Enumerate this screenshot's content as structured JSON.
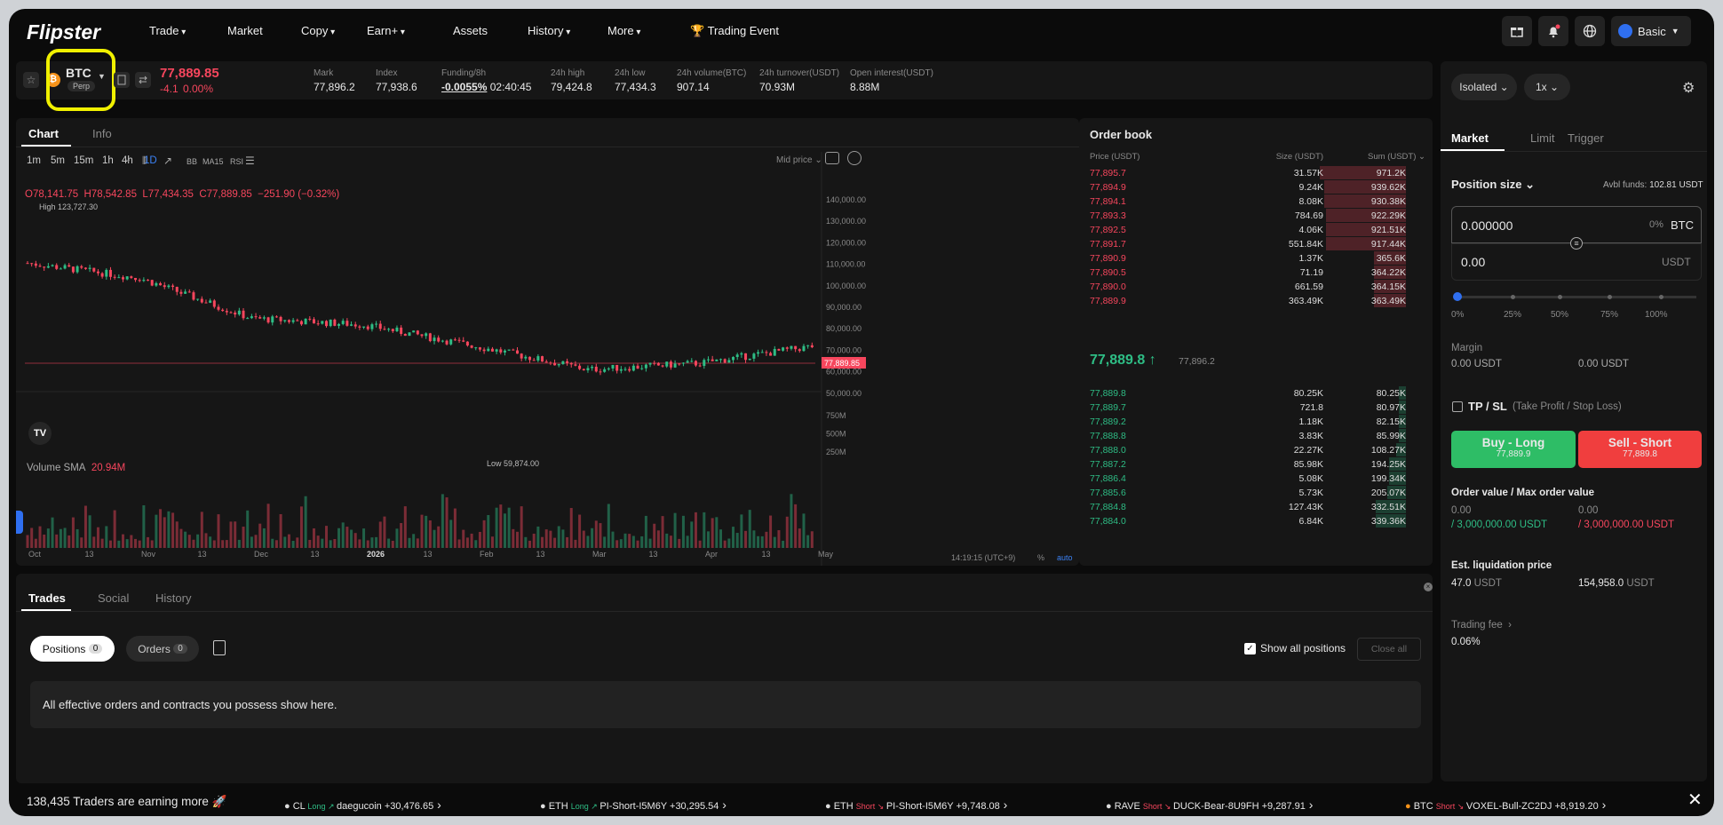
{
  "nav": {
    "logo": "Flipster",
    "items": [
      "Trade",
      "Market",
      "Copy",
      "Earn+",
      "Assets",
      "History",
      "More",
      "Trading Event"
    ],
    "dropdowns": [
      true,
      false,
      true,
      true,
      false,
      true,
      true,
      false
    ],
    "account": "Basic"
  },
  "symbol": {
    "name": "BTC",
    "type": "Perp",
    "price": "77,889.85",
    "change": "-4.1",
    "change_pct": "0.00%",
    "stats": [
      {
        "label": "Mark",
        "value": "77,896.2"
      },
      {
        "label": "Index",
        "value": "77,938.6"
      },
      {
        "label": "Funding/8h",
        "value": "-0.0055%",
        "extra": "02:40:45"
      },
      {
        "label": "24h high",
        "value": "79,424.8"
      },
      {
        "label": "24h low",
        "value": "77,434.3"
      },
      {
        "label": "24h volume(BTC)",
        "value": "907.14"
      },
      {
        "label": "24h turnover(USDT)",
        "value": "70.93M"
      },
      {
        "label": "Open interest(USDT)",
        "value": "8.88M"
      }
    ]
  },
  "chart": {
    "tabs": [
      "Chart",
      "Info"
    ],
    "intervals": [
      "1m",
      "5m",
      "15m",
      "1h",
      "4h",
      "1D"
    ],
    "active_interval": "1D",
    "tools": [
      "BB",
      "MA15",
      "RSI"
    ],
    "price_mode": "Mid price",
    "ohlc": {
      "o": "O78,141.75",
      "h": "H78,542.85",
      "l": "L77,434.35",
      "c": "C77,889.85",
      "chg": "−251.90 (−0.32%)"
    },
    "high_label": "High 123,727.30",
    "low_label": "Low 59,874.00",
    "last_price_tag": "77,889.85",
    "y_ticks": [
      "140,000.00",
      "130,000.00",
      "120,000.00",
      "110,000.00",
      "100,000.00",
      "90,000.00",
      "80,000.00",
      "70,000.00",
      "60,000.00",
      "50,000.00"
    ],
    "vol_ticks": [
      "750M",
      "500M",
      "250M"
    ],
    "volume_label": "Volume SMA",
    "volume_value": "20.94M",
    "x_ticks": [
      "Oct",
      "13",
      "Nov",
      "13",
      "Dec",
      "13",
      "2026",
      "13",
      "Feb",
      "13",
      "Mar",
      "13",
      "Apr",
      "13",
      "May"
    ],
    "time": "14:19:15 (UTC+9)",
    "pct": "%",
    "auto": "auto"
  },
  "chart_data": {
    "type": "line",
    "title": "",
    "xlabel": "",
    "ylabel": "",
    "ylim": [
      50000,
      140000
    ],
    "x": [
      "Oct",
      "Nov",
      "Dec",
      "2026",
      "Feb",
      "Mar",
      "Apr",
      "May"
    ],
    "series": [
      {
        "values": [
          117000,
          110000,
          91000,
          88000,
          78000,
          67000,
          70000,
          77900
        ]
      }
    ]
  },
  "orderbook": {
    "title": "Order book",
    "headers": [
      "Price (USDT)",
      "Size (USDT)",
      "Sum (USDT)"
    ],
    "asks": [
      [
        "77,895.7",
        "31.57K",
        "971.2K",
        0.46
      ],
      [
        "77,894.9",
        "9.24K",
        "939.62K",
        0.44
      ],
      [
        "77,894.1",
        "8.08K",
        "930.38K",
        0.44
      ],
      [
        "77,893.3",
        "784.69",
        "922.29K",
        0.43
      ],
      [
        "77,892.5",
        "4.06K",
        "921.51K",
        0.43
      ],
      [
        "77,891.7",
        "551.84K",
        "917.44K",
        0.43
      ],
      [
        "77,890.9",
        "1.37K",
        "365.6K",
        0.17
      ],
      [
        "77,890.5",
        "71.19",
        "364.22K",
        0.17
      ],
      [
        "77,890.0",
        "661.59",
        "364.15K",
        0.17
      ],
      [
        "77,889.9",
        "363.49K",
        "363.49K",
        0.17
      ]
    ],
    "mid": "77,889.8",
    "mid_mark": "77,896.2",
    "bids": [
      [
        "77,889.8",
        "80.25K",
        "80.25K",
        0.04
      ],
      [
        "77,889.7",
        "721.8",
        "80.97K",
        0.04
      ],
      [
        "77,889.2",
        "1.18K",
        "82.15K",
        0.04
      ],
      [
        "77,888.8",
        "3.83K",
        "85.99K",
        0.04
      ],
      [
        "77,888.0",
        "22.27K",
        "108.27K",
        0.05
      ],
      [
        "77,887.2",
        "85.98K",
        "194.25K",
        0.09
      ],
      [
        "77,886.4",
        "5.08K",
        "199.34K",
        0.09
      ],
      [
        "77,885.6",
        "5.73K",
        "205.07K",
        0.1
      ],
      [
        "77,884.8",
        "127.43K",
        "332.51K",
        0.16
      ],
      [
        "77,884.0",
        "6.84K",
        "339.36K",
        0.16
      ]
    ]
  },
  "bottom": {
    "tabs": [
      "Trades",
      "Social",
      "History"
    ],
    "positions": "Positions",
    "positions_count": "0",
    "orders": "Orders",
    "orders_count": "0",
    "show_all": "Show all positions",
    "close_all": "Close all",
    "empty": "All effective orders and contracts you possess show here."
  },
  "order_panel": {
    "margin_mode": "Isolated",
    "leverage": "1x",
    "tabs": [
      "Market",
      "Limit",
      "Trigger"
    ],
    "position_size": "Position size",
    "avbl_label": "Avbl funds:",
    "avbl_value": "102.81 USDT",
    "btc_value": "0.000000",
    "btc_pct": "0%",
    "btc_unit": "BTC",
    "usdt_value": "0.00",
    "usdt_unit": "USDT",
    "slider": [
      "0%",
      "25%",
      "50%",
      "75%",
      "100%"
    ],
    "margin_label": "Margin",
    "margin_long": "0.00 USDT",
    "margin_short": "0.00 USDT",
    "tpsl": "TP / SL",
    "tpsl_hint": "(Take Profit / Stop Loss)",
    "buy": "Buy - Long",
    "buy_price": "77,889.9",
    "sell": "Sell - Short",
    "sell_price": "77,889.8",
    "order_value_label": "Order value / Max order value",
    "ov_long": "0.00",
    "ov_long_max": "/ 3,000,000.00 USDT",
    "ov_short": "0.00",
    "ov_short_max": "/ 3,000,000.00 USDT",
    "liq_label": "Est. liquidation price",
    "liq_long": "47.0",
    "liq_long_unit": "USDT",
    "liq_short": "154,958.0",
    "liq_short_unit": "USDT",
    "fee_label": "Trading fee",
    "fee_value": "0.06%"
  },
  "ticker": {
    "headline": "138,435 Traders are earning more 🚀",
    "items": [
      {
        "coin": "CL",
        "side": "Long",
        "trader": "daegucoin",
        "pnl": "+30,476.65"
      },
      {
        "coin": "ETH",
        "side": "Long",
        "trader": "PI-Short-I5M6Y",
        "pnl": "+30,295.54"
      },
      {
        "coin": "ETH",
        "side": "Short",
        "trader": "PI-Short-I5M6Y",
        "pnl": "+9,748.08"
      },
      {
        "coin": "RAVE",
        "side": "Short",
        "trader": "DUCK-Bear-8U9FH",
        "pnl": "+9,287.91"
      },
      {
        "coin": "BTC",
        "side": "Short",
        "trader": "VOXEL-Bull-ZC2DJ",
        "pnl": "+8,919.20"
      }
    ]
  },
  "colors": {
    "up": "#2ebd85",
    "down": "#f6465d",
    "highlight": "#f0f000"
  }
}
